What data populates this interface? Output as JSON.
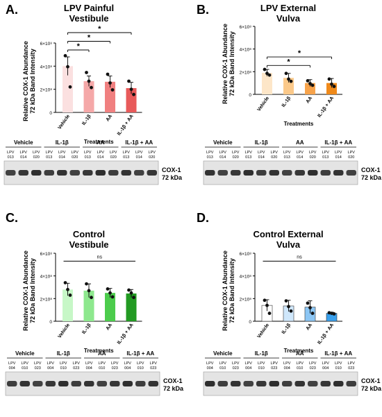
{
  "treatments_label": "Treatments",
  "ylabel": "Relative COX-1 Abundance\n72 kDa Band Intensity",
  "blot_band_label": "COX-1\n72 kDa",
  "categories": [
    "Vehicle",
    "IL-1β",
    "AA",
    "IL-1β + AA"
  ],
  "chart_data": [
    {
      "type": "bar",
      "panel_letter": "A.",
      "title": "LPV Painful\nVestibule",
      "categories": [
        "Vehicle",
        "IL-1β",
        "AA",
        "IL-1β + AA"
      ],
      "values": [
        400000000.0,
        270000000.0,
        265000000.0,
        210000000.0
      ],
      "errors": [
        80000000.0,
        45000000.0,
        50000000.0,
        50000000.0
      ],
      "points": [
        [
          490000000.0,
          395000000.0,
          220000000.0
        ],
        [
          345000000.0,
          270000000.0,
          215000000.0
        ],
        [
          330000000.0,
          255000000.0,
          195000000.0
        ],
        [
          270000000.0,
          200000000.0,
          155000000.0
        ]
      ],
      "colors": [
        "#fbe0e0",
        "#f5a8a8",
        "#f08080",
        "#e85a5a"
      ],
      "ylim": [
        0,
        600000000.0
      ],
      "yticks": [
        {
          "v": 0,
          "label": "0"
        },
        {
          "v": 200000000.0,
          "label": "2×10⁸"
        },
        {
          "v": 400000000.0,
          "label": "4×10⁸"
        },
        {
          "v": 600000000.0,
          "label": "6×10⁸"
        }
      ],
      "significance": [
        {
          "from": 0,
          "to": 1,
          "label": "*"
        },
        {
          "from": 0,
          "to": 2,
          "label": "*"
        },
        {
          "from": 0,
          "to": 3,
          "label": "*"
        }
      ],
      "blot_ids": [
        "LPV\n013",
        "LPV\n014",
        "LPV\n020",
        "LPV\n013",
        "LPV\n014",
        "LPV\n020",
        "LPV\n013",
        "LPV\n014",
        "LPV\n020",
        "LPV\n013",
        "LPV\n014",
        "LPV\n020"
      ]
    },
    {
      "type": "bar",
      "panel_letter": "B.",
      "title": "LPV External\nVulva",
      "categories": [
        "Vehicle",
        "IL-1β",
        "AA",
        "IL-1β + AA"
      ],
      "values": [
        190000000.0,
        145000000.0,
        100000000.0,
        100000000.0
      ],
      "errors": [
        30000000.0,
        40000000.0,
        30000000.0,
        40000000.0
      ],
      "points": [
        [
          220000000.0,
          185000000.0,
          170000000.0
        ],
        [
          185000000.0,
          135000000.0,
          115000000.0
        ],
        [
          120000000.0,
          95000000.0,
          80000000.0
        ],
        [
          135000000.0,
          90000000.0,
          70000000.0
        ]
      ],
      "colors": [
        "#fde6c8",
        "#fbc98a",
        "#f7a34b",
        "#f08a1a"
      ],
      "ylim": [
        0,
        600000000.0
      ],
      "yticks": [
        {
          "v": 0,
          "label": "0"
        },
        {
          "v": 200000000.0,
          "label": "2×10⁸"
        },
        {
          "v": 400000000.0,
          "label": "4×10⁸"
        },
        {
          "v": 600000000.0,
          "label": "6×10⁸"
        }
      ],
      "significance": [
        {
          "from": 0,
          "to": 2,
          "label": "*"
        },
        {
          "from": 0,
          "to": 3,
          "label": "*"
        }
      ],
      "blot_ids": [
        "LPV\n013",
        "LPV\n014",
        "LPV\n020",
        "LPV\n013",
        "LPV\n014",
        "LPV\n020",
        "LPV\n013",
        "LPV\n014",
        "LPV\n020",
        "LPV\n013",
        "LPV\n014",
        "LPV\n020"
      ]
    },
    {
      "type": "bar",
      "panel_letter": "C.",
      "title": "Control\nVestibule",
      "categories": [
        "Vehicle",
        "IL-1β",
        "AA",
        "IL-1β + AA"
      ],
      "values": [
        280000000.0,
        270000000.0,
        250000000.0,
        245000000.0
      ],
      "errors": [
        55000000.0,
        60000000.0,
        40000000.0,
        35000000.0
      ],
      "points": [
        [
          340000000.0,
          280000000.0,
          230000000.0
        ],
        [
          330000000.0,
          270000000.0,
          210000000.0
        ],
        [
          285000000.0,
          250000000.0,
          215000000.0
        ],
        [
          275000000.0,
          250000000.0,
          210000000.0
        ]
      ],
      "colors": [
        "#c7f7c7",
        "#8ee88e",
        "#4ccc4c",
        "#229a22"
      ],
      "ylim": [
        0,
        600000000.0
      ],
      "yticks": [
        {
          "v": 0,
          "label": "0"
        },
        {
          "v": 200000000.0,
          "label": "2×10⁸"
        },
        {
          "v": 400000000.0,
          "label": "4×10⁸"
        },
        {
          "v": 600000000.0,
          "label": "6×10⁸"
        }
      ],
      "significance": [
        {
          "from": 0,
          "to": 3,
          "label": "ns"
        }
      ],
      "blot_ids": [
        "LPV\n004",
        "LPV\n010",
        "LPV\n023",
        "LPV\n004",
        "LPV\n010",
        "LPV\n023",
        "LPV\n004",
        "LPV\n010",
        "LPV\n023",
        "LPV\n004",
        "LPV\n010",
        "LPV\n023"
      ]
    },
    {
      "type": "bar",
      "panel_letter": "D.",
      "title": "Control External\nVulva",
      "categories": [
        "Vehicle",
        "IL-1β",
        "AA",
        "IL-1β + AA"
      ],
      "values": [
        140000000.0,
        135000000.0,
        125000000.0,
        70000000.0
      ],
      "errors": [
        50000000.0,
        50000000.0,
        55000000.0,
        10000000.0
      ],
      "points": [
        [
          185000000.0,
          140000000.0,
          70000000.0
        ],
        [
          180000000.0,
          130000000.0,
          90000000.0
        ],
        [
          160000000.0,
          120000000.0,
          70000000.0
        ],
        [
          75000000.0,
          70000000.0,
          65000000.0
        ]
      ],
      "colors": [
        "#ffffff",
        "#cfe7fb",
        "#8cc6f4",
        "#3aa0ec"
      ],
      "ylim": [
        0,
        600000000.0
      ],
      "yticks": [
        {
          "v": 0,
          "label": "0"
        },
        {
          "v": 200000000.0,
          "label": "2×10⁸"
        },
        {
          "v": 400000000.0,
          "label": "4×10⁸"
        },
        {
          "v": 600000000.0,
          "label": "6×10⁸"
        }
      ],
      "significance": [
        {
          "from": 0,
          "to": 3,
          "label": "ns"
        }
      ],
      "blot_ids": [
        "LPV\n004",
        "LPV\n010",
        "LPV\n023",
        "LPV\n004",
        "LPV\n010",
        "LPV\n023",
        "LPV\n004",
        "LPV\n010",
        "LPV\n023",
        "LPV\n004",
        "LPV\n010",
        "LPV\n023"
      ]
    }
  ]
}
